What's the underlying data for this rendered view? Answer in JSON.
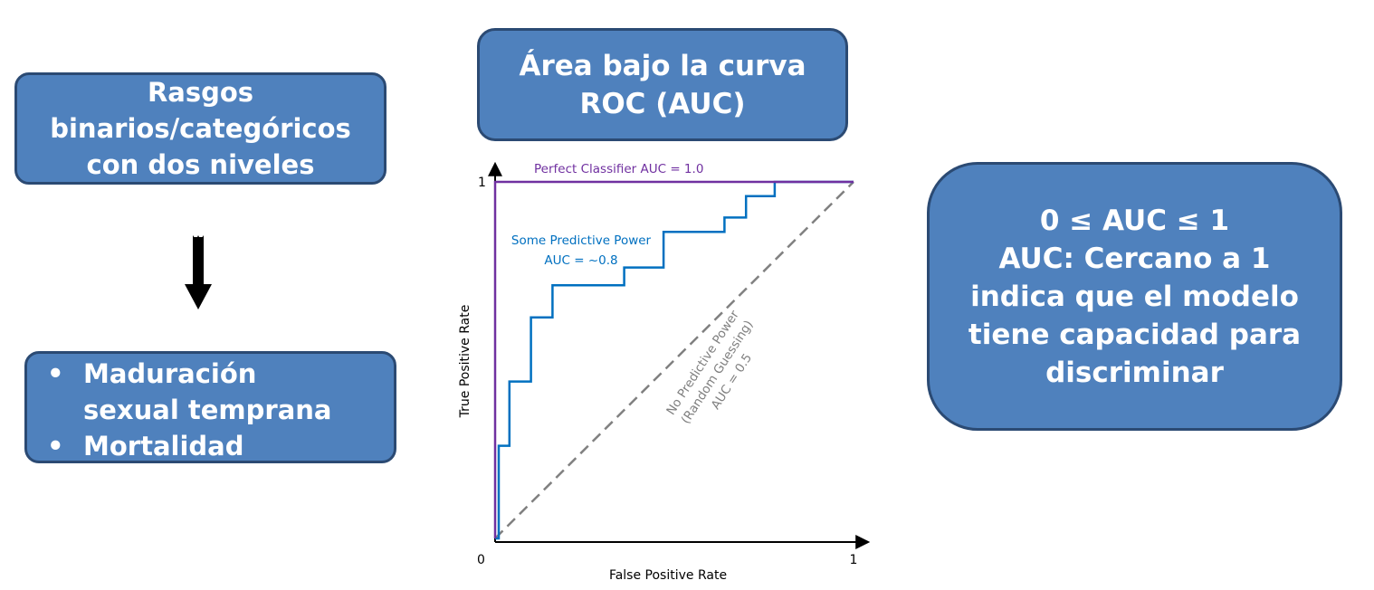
{
  "left_top_box": {
    "lines": [
      "Rasgos",
      "binarios/categóricos",
      "con dos niveles"
    ]
  },
  "left_bottom_box": {
    "bullet_symbol": "•",
    "items": [
      {
        "lines": [
          "Maduración",
          "sexual temprana"
        ]
      },
      {
        "lines": [
          "Mortalidad"
        ]
      }
    ]
  },
  "title_box": {
    "lines": [
      "Área bajo la curva",
      "ROC (AUC)"
    ]
  },
  "right_box": {
    "lines": [
      "0 ≤ AUC ≤ 1",
      "AUC: Cercano a 1",
      "indica que el modelo",
      "tiene capacidad para",
      "discriminar"
    ]
  },
  "colors": {
    "box_fill": "#4f81bd",
    "box_border": "#2b4a73",
    "perfect": "#7030a0",
    "some": "#0070c0",
    "random": "#808080"
  },
  "icons": {
    "arrow": "down-arrow-icon"
  },
  "chart_data": {
    "type": "line",
    "xlabel": "False Positive Rate",
    "ylabel": "True Positive Rate",
    "xlim": [
      0,
      1
    ],
    "ylim": [
      0,
      1
    ],
    "x_tick_labels": [
      "0",
      "1"
    ],
    "y_tick_labels": [
      "1"
    ],
    "series": [
      {
        "name": "Perfect Classifier",
        "label": "AUC = 1.0",
        "color": "#7030a0",
        "x": [
          0,
          0,
          1
        ],
        "y": [
          0,
          1,
          1
        ]
      },
      {
        "name": "Some Predictive Power",
        "label": "AUC = ~0.8",
        "color": "#0070c0",
        "x": [
          0,
          0.01,
          0.01,
          0.04,
          0.04,
          0.1,
          0.1,
          0.16,
          0.16,
          0.36,
          0.36,
          0.47,
          0.47,
          0.64,
          0.64,
          0.7,
          0.7,
          0.78,
          0.78,
          1
        ],
        "y": [
          0,
          0,
          0.26,
          0.26,
          0.44,
          0.44,
          0.62,
          0.62,
          0.71,
          0.71,
          0.76,
          0.76,
          0.86,
          0.86,
          0.9,
          0.9,
          0.96,
          0.96,
          1,
          1
        ]
      },
      {
        "name": "No Predictive Power",
        "label_lines": [
          "No Predictive Power",
          "(Random Guessing)",
          "AUC = 0.5"
        ],
        "color": "#808080",
        "dashed": true,
        "x": [
          0,
          1
        ],
        "y": [
          0,
          1
        ]
      }
    ]
  }
}
